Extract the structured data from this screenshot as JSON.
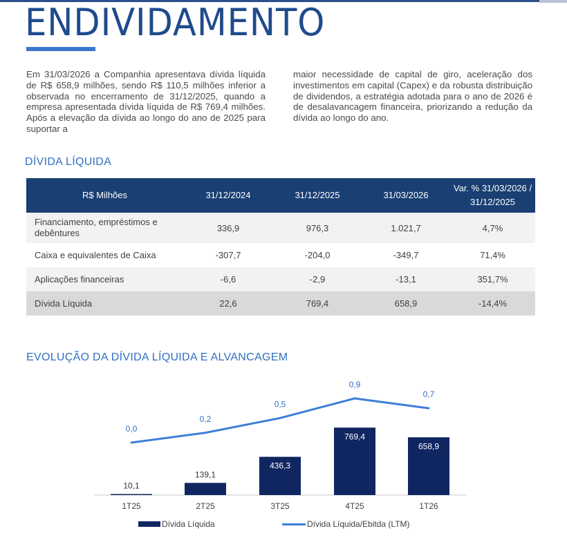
{
  "header": {
    "title": "ENDIVIDAMENTO"
  },
  "intro": {
    "left": "Em 31/03/2026 a Companhia apresentava dívida líquida de R$ 658,9 milhões, sendo R$ 110,5 milhões inferior a observada no encerramento de 31/12/2025, quando a empresa apresentada dívida líquida de R$ 769,4 milhões. Após a elevação da dívida ao longo do ano de 2025 para suportar a",
    "right": "maior necessidade de capital de giro, aceleração dos investimentos em capital (Capex) e da robusta distribuição de dividendos, a estratégia adotada para o ano de 2026 é de desalavancagem financeira, priorizando a redução da dívida ao longo do ano."
  },
  "table": {
    "section_title": "DÍVIDA LÍQUIDA",
    "headers": [
      "R$ Milhões",
      "31/12/2024",
      "31/12/2025",
      "31/03/2026",
      "Var. % 31/03/2026 / 31/12/2025"
    ],
    "rows": [
      [
        "Financiamento, empréstimos e debêntures",
        "336,9",
        "976,3",
        "1.021,7",
        "4,7%"
      ],
      [
        "Caixa e equivalentes de Caixa",
        "-307,7",
        "-204,0",
        "-349,7",
        "71,4%"
      ],
      [
        "Aplicações financeiras",
        "-6,6",
        "-2,9",
        "-13,1",
        "351,7%"
      ],
      [
        "Dívida Líquida",
        "22,6",
        "769,4",
        "658,9",
        "-14,4%"
      ]
    ]
  },
  "chart_section": {
    "title": "EVOLUÇÃO DA DÍVIDA LÍQUIDA E ALVANCAGEM"
  },
  "chart_data": {
    "type": "bar",
    "categories": [
      "1T25",
      "2T25",
      "3T25",
      "4T25",
      "1T26"
    ],
    "series": [
      {
        "name": "Dívida Líquida",
        "type": "bar",
        "values": [
          10.1,
          139.1,
          436.3,
          769.4,
          658.9
        ],
        "labels": [
          "10,1",
          "139,1",
          "436,3",
          "769,4",
          "658,9"
        ]
      },
      {
        "name": "Dívida Líquida/Ebitda (LTM)",
        "type": "line",
        "values": [
          0.0,
          0.2,
          0.5,
          0.9,
          0.7
        ],
        "labels": [
          "0,0",
          "0,2",
          "0,5",
          "0,9",
          "0,7"
        ]
      }
    ],
    "legend": "bottom"
  },
  "colors": {
    "bar": "#0f2660",
    "line": "#3c7fd8",
    "header": "#193f73",
    "accent": "#2f6fc3"
  }
}
